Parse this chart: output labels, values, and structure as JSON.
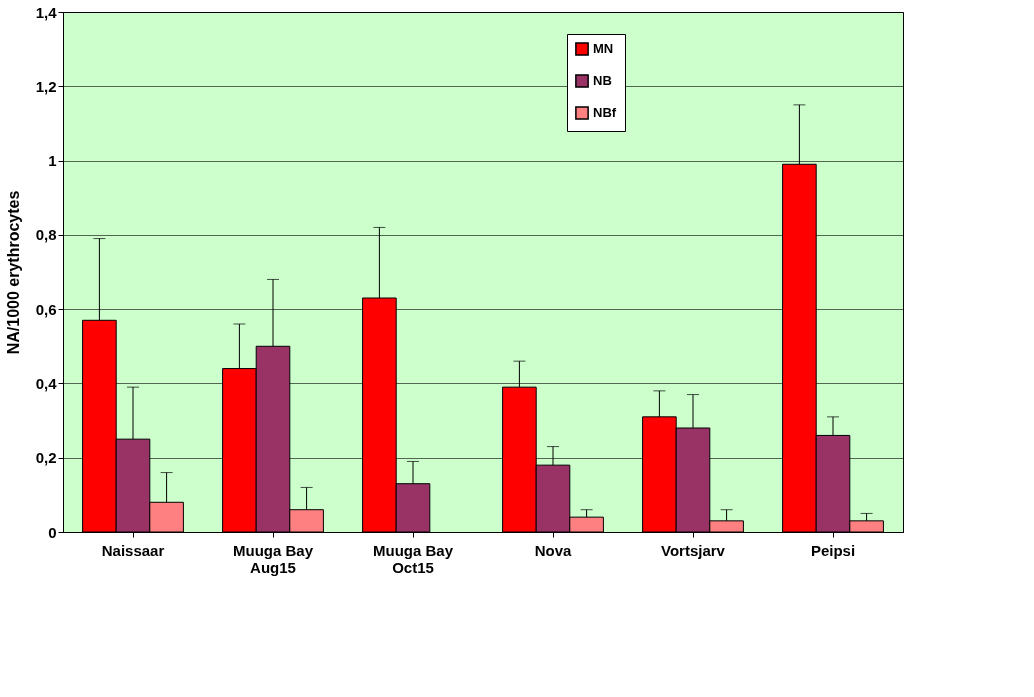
{
  "chart_data": {
    "type": "bar",
    "ylabel": "NA/1000 erythrocytes",
    "categories": [
      "Naissaar",
      "Muuga Bay\nAug15",
      "Muuga Bay\nOct15",
      "Nova",
      "Vortsjarv",
      "Peipsi"
    ],
    "series": [
      {
        "name": "MN",
        "color": "#ff0000",
        "values": [
          0.57,
          0.44,
          0.63,
          0.39,
          0.31,
          0.99
        ],
        "errors": [
          [
            0.57,
            0.79
          ],
          [
            0.44,
            0.56
          ],
          [
            0.63,
            0.82
          ],
          [
            0.39,
            0.46
          ],
          [
            0.31,
            0.38
          ],
          [
            0.99,
            1.15
          ]
        ]
      },
      {
        "name": "NB",
        "color": "#993366",
        "values": [
          0.25,
          0.5,
          0.13,
          0.18,
          0.28,
          0.26
        ],
        "errors": [
          [
            0.25,
            0.39
          ],
          [
            0.5,
            0.68
          ],
          [
            0.13,
            0.19
          ],
          [
            0.18,
            0.23
          ],
          [
            0.28,
            0.37
          ],
          [
            0.26,
            0.31
          ]
        ]
      },
      {
        "name": "NBf",
        "color": "#ff8080",
        "values": [
          0.08,
          0.06,
          null,
          0.04,
          0.03,
          0.03
        ],
        "errors": [
          [
            0.08,
            0.16
          ],
          [
            0.06,
            0.12
          ],
          null,
          [
            0.04,
            0.06
          ],
          [
            0.03,
            0.06
          ],
          [
            0.03,
            0.05
          ]
        ]
      }
    ],
    "ylim": [
      0,
      1.4
    ],
    "yticks": [
      0,
      {
        "value": 0.2,
        "label": "0,2"
      },
      {
        "value": 0.4,
        "label": "0,4"
      },
      {
        "value": 0.6,
        "label": "0,6"
      },
      {
        "value": 0.8,
        "label": "0,8"
      },
      1,
      {
        "value": 1.2,
        "label": "1,2"
      },
      {
        "value": 1.4,
        "label": "1,4"
      }
    ],
    "grid": "y",
    "legend": "top right"
  }
}
